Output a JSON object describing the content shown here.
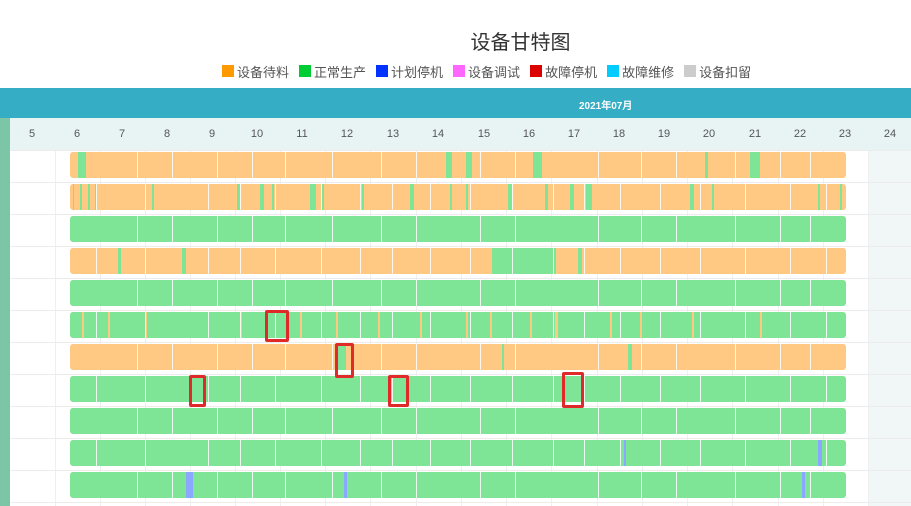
{
  "title": "设备甘特图",
  "legend": [
    {
      "label": "设备待料",
      "color": "#ff9900"
    },
    {
      "label": "正常生产",
      "color": "#00cc33"
    },
    {
      "label": "计划停机",
      "color": "#0033ff"
    },
    {
      "label": "设备调试",
      "color": "#ff66ff"
    },
    {
      "label": "故障停机",
      "color": "#dd0000"
    },
    {
      "label": "故障维修",
      "color": "#00ccff"
    },
    {
      "label": "设备扣留",
      "color": "#cccccc"
    }
  ],
  "month_label": "2021年07月",
  "days": [
    "5",
    "6",
    "7",
    "8",
    "9",
    "10",
    "11",
    "12",
    "13",
    "14",
    "15",
    "16",
    "17",
    "18",
    "19",
    "20",
    "21",
    "22",
    "23",
    "24"
  ],
  "colors": {
    "waiting_fill": "#ffc983",
    "production_fill": "#7ee496",
    "planned_stop": "#8aa8ff",
    "header_bg": "#35aec5",
    "highlight": "#e02a2a"
  }
}
